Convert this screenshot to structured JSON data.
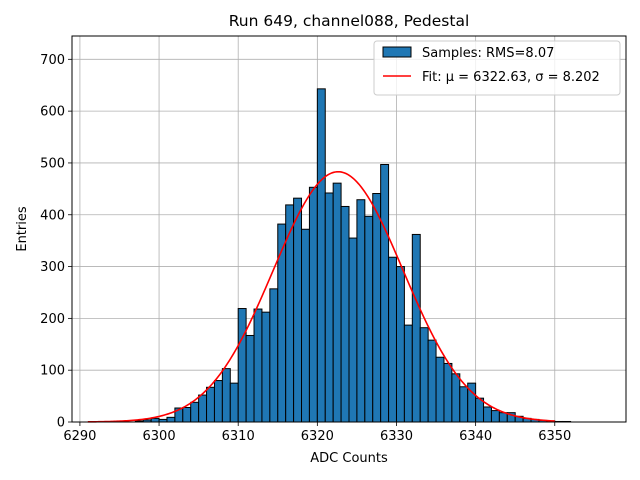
{
  "chart_data": {
    "type": "bar",
    "title": "Run 649, channel088, Pedestal",
    "xlabel": "ADC Counts",
    "ylabel": "Entries",
    "xlim": [
      6289,
      6359
    ],
    "ylim": [
      0,
      745
    ],
    "xticks": [
      6290,
      6300,
      6310,
      6320,
      6330,
      6340,
      6350
    ],
    "yticks": [
      0,
      100,
      200,
      300,
      400,
      500,
      600,
      700
    ],
    "grid": true,
    "legend_position": "top-right",
    "series": [
      {
        "name": "Samples: RMS=8.07",
        "kind": "histogram",
        "color": "#1f77b4",
        "edge_color": "#000000",
        "bin_start": 6291,
        "bin_width": 1,
        "values": [
          0,
          0,
          0,
          0,
          0,
          0,
          2,
          4,
          7,
          5,
          9,
          27,
          28,
          38,
          52,
          67,
          80,
          103,
          75,
          219,
          167,
          218,
          212,
          257,
          382,
          419,
          432,
          372,
          453,
          643,
          442,
          461,
          416,
          355,
          429,
          397,
          441,
          497,
          318,
          300,
          187,
          362,
          182,
          158,
          125,
          113,
          93,
          68,
          75,
          46,
          29,
          22,
          18,
          18,
          11,
          7,
          5,
          3,
          2,
          1,
          1,
          0,
          0,
          0,
          0,
          0
        ]
      },
      {
        "name": "Fit: μ = 6322.63, σ = 8.202",
        "kind": "gaussian",
        "color": "#ff0000",
        "mu": 6322.63,
        "sigma": 8.202,
        "amplitude": 483,
        "x_range": [
          6291,
          6350
        ]
      }
    ]
  }
}
